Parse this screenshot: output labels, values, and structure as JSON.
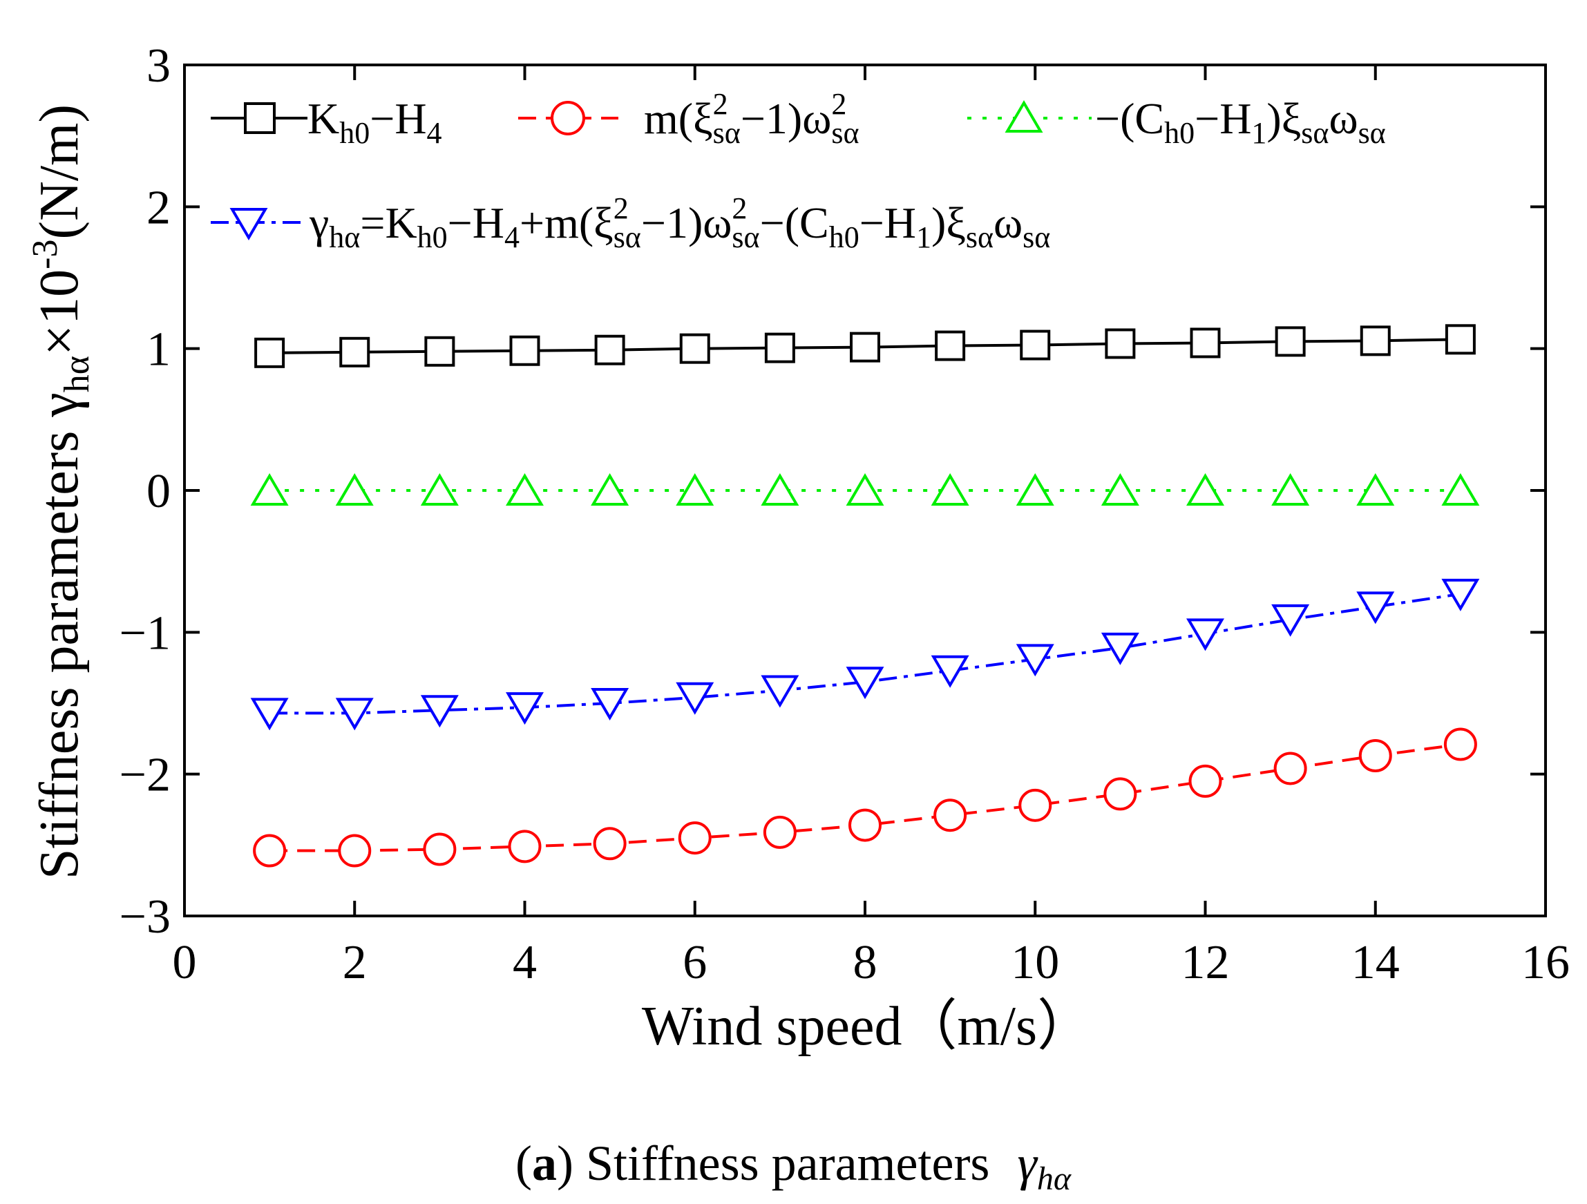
{
  "chart_data": {
    "type": "line",
    "x": [
      1,
      2,
      3,
      4,
      5,
      6,
      7,
      8,
      9,
      10,
      11,
      12,
      13,
      14,
      15
    ],
    "xlabel": "Wind speed（m/s）",
    "ylabel": "Stiffness parameters γhα×10⁻³(N/m)",
    "xlim": [
      0,
      16
    ],
    "ylim": [
      -3,
      3
    ],
    "xticks": [
      "0",
      "2",
      "4",
      "6",
      "8",
      "10",
      "12",
      "14",
      "16"
    ],
    "yticks": [
      "3",
      "2",
      "1",
      "0",
      "−1",
      "−2",
      "−3"
    ],
    "grid": false,
    "legend_position": "top",
    "caption": {
      "label": "a",
      "text": "Stiffness parameters",
      "symbol": "γ",
      "symbol_sub": "hα"
    },
    "series": [
      {
        "name": "Kh0−H4",
        "color": "#000000",
        "marker": "square",
        "line": "solid",
        "values": [
          0.97,
          0.975,
          0.98,
          0.985,
          0.99,
          1.0,
          1.005,
          1.01,
          1.02,
          1.025,
          1.035,
          1.04,
          1.05,
          1.055,
          1.065
        ]
      },
      {
        "name": "m(ξsα²−1)ωsα²",
        "color": "#ff0000",
        "marker": "circle",
        "line": "dash",
        "values": [
          -2.54,
          -2.54,
          -2.53,
          -2.51,
          -2.49,
          -2.45,
          -2.41,
          -2.36,
          -2.29,
          -2.22,
          -2.14,
          -2.05,
          -1.96,
          -1.87,
          -1.79
        ]
      },
      {
        "name": "−(Ch0−H1)ξsαωsα",
        "color": "#00ee00",
        "marker": "triangle-up",
        "line": "dot",
        "values": [
          0.0,
          0.0,
          0.0,
          0.0,
          0.0,
          0.0,
          0.0,
          0.0,
          0.0,
          0.0,
          0.0,
          0.0,
          0.0,
          0.0,
          0.0
        ]
      },
      {
        "name": "γhα=Kh0−H4+m(ξsα²−1)ωsα²−(Ch0−H1)ξsαωsα",
        "color": "#0000ff",
        "marker": "triangle-down",
        "line": "dashdot",
        "values": [
          -1.57,
          -1.57,
          -1.55,
          -1.53,
          -1.5,
          -1.46,
          -1.41,
          -1.35,
          -1.27,
          -1.19,
          -1.11,
          -1.01,
          -0.91,
          -0.82,
          -0.73
        ]
      }
    ],
    "legend_text": {
      "s1": {
        "a": "K",
        "b": "h0",
        "c": "−H",
        "d": "4"
      },
      "s2": {
        "a": "m(ξ",
        "sup1": "2",
        "sub1": "sα",
        "b": "−1)ω",
        "sup2": "2",
        "sub2": "sα"
      },
      "s3": {
        "a": "−(C",
        "sub1": "h0",
        "b": "−H",
        "sub2": "1",
        "c": ")ξ",
        "sub3": "sα",
        "d": "ω",
        "sub4": "sα"
      },
      "s4": {
        "a": "γ",
        "sub1": "hα",
        "b": "=K",
        "sub2": "h0",
        "c": "−H",
        "sub3": "4",
        "d": "+m(ξ",
        "sup4": "2",
        "sub4": "sα",
        "e": "−1)ω",
        "sup5": "2",
        "sub5": "sα",
        "f": "−(C",
        "sub6": "h0",
        "g": "−H",
        "sub7": "1",
        "h": ")ξ",
        "sub8": "sα",
        "i": "ω",
        "sub9": "sα"
      }
    },
    "ylabel_parts": {
      "a": "Stiffness parameters ",
      "b": "γ",
      "sub": "hα",
      "c": "×10",
      "sup": "-3",
      "d": "(N/m)"
    }
  }
}
